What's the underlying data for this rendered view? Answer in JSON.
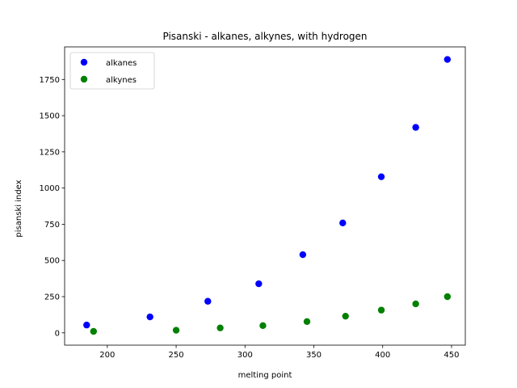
{
  "chart_data": {
    "type": "scatter",
    "title": "Pisanski - alkanes, alkynes, with hydrogen",
    "xlabel": "melting point",
    "ylabel": "pisanski index",
    "xlim": [
      169,
      460
    ],
    "ylim": [
      -85,
      1975
    ],
    "xticks": [
      200,
      250,
      300,
      350,
      400,
      450
    ],
    "yticks": [
      0,
      250,
      500,
      750,
      1000,
      1250,
      1500,
      1750
    ],
    "legend_position": "top-left",
    "grid": false,
    "series": [
      {
        "name": "alkanes",
        "color": "#0000ff",
        "points": [
          {
            "x": 185,
            "y": 54
          },
          {
            "x": 231,
            "y": 110
          },
          {
            "x": 273,
            "y": 218
          },
          {
            "x": 310,
            "y": 339
          },
          {
            "x": 342,
            "y": 540
          },
          {
            "x": 371,
            "y": 759
          },
          {
            "x": 399,
            "y": 1078
          },
          {
            "x": 424,
            "y": 1419
          },
          {
            "x": 447,
            "y": 1888
          }
        ]
      },
      {
        "name": "alkynes",
        "color": "#008000",
        "points": [
          {
            "x": 190,
            "y": 10
          },
          {
            "x": 250,
            "y": 18
          },
          {
            "x": 282,
            "y": 34
          },
          {
            "x": 313,
            "y": 50
          },
          {
            "x": 345,
            "y": 78
          },
          {
            "x": 373,
            "y": 115
          },
          {
            "x": 399,
            "y": 157
          },
          {
            "x": 424,
            "y": 200
          },
          {
            "x": 447,
            "y": 250
          }
        ]
      }
    ]
  }
}
